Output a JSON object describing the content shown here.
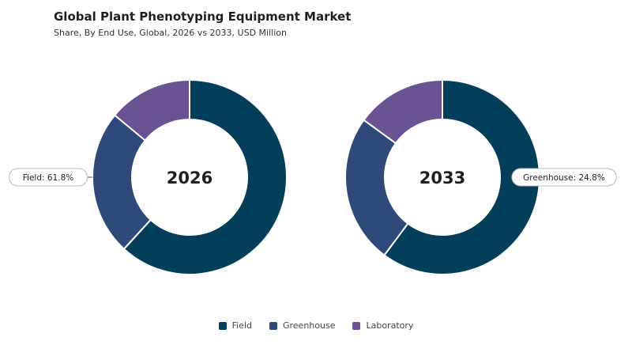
{
  "header": {
    "title": "Global Plant Phenotyping Equipment Market",
    "subtitle": "Share, By End Use, Global, 2026 vs 2033, USD Million"
  },
  "chart_data": [
    {
      "type": "pie",
      "center_label": "2026",
      "categories": [
        "Field",
        "Greenhouse",
        "Laboratory"
      ],
      "values": [
        61.8,
        24.2,
        14.0
      ],
      "callout": "Field: 61.8%",
      "colors": [
        "#033e5b",
        "#2d4a7a",
        "#6a5393"
      ]
    },
    {
      "type": "pie",
      "center_label": "2033",
      "categories": [
        "Field",
        "Greenhouse",
        "Laboratory"
      ],
      "values": [
        60.2,
        24.8,
        15.0
      ],
      "callout": "Greenhouse: 24.8%",
      "colors": [
        "#033e5b",
        "#2d4a7a",
        "#6a5393"
      ]
    }
  ],
  "legend": [
    {
      "label": "Field",
      "color": "#033e5b"
    },
    {
      "label": "Greenhouse",
      "color": "#2d4a7a"
    },
    {
      "label": "Laboratory",
      "color": "#6a5393"
    }
  ]
}
